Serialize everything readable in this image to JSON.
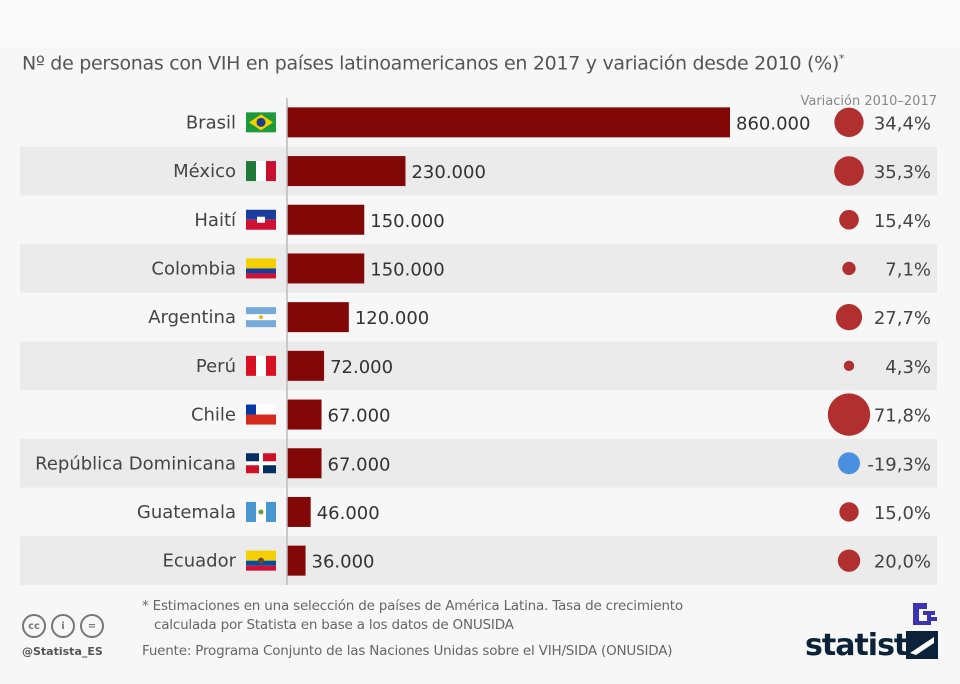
{
  "chart_data": {
    "type": "bar",
    "title": "Nº de personas con VIH en países latinoamericanos en 2017 y variación desde 2010 (%)",
    "title_mark": "*",
    "variation_header": "Variación 2010–2017",
    "categories": [
      "Brasil",
      "México",
      "Haití",
      "Colombia",
      "Argentina",
      "Perú",
      "Chile",
      "República Dominicana",
      "Guatemala",
      "Ecuador"
    ],
    "flags": [
      "br",
      "mx",
      "ht",
      "co",
      "ar",
      "pe",
      "cl",
      "do",
      "gt",
      "ec"
    ],
    "values": [
      860000,
      230000,
      150000,
      150000,
      120000,
      72000,
      67000,
      67000,
      46000,
      36000
    ],
    "value_labels": [
      "860.000",
      "230.000",
      "150.000",
      "150.000",
      "120.000",
      "72.000",
      "67.000",
      "67.000",
      "46.000",
      "36.000"
    ],
    "variation": [
      34.4,
      35.3,
      15.4,
      7.1,
      27.7,
      4.3,
      71.8,
      -19.3,
      15.0,
      20.0
    ],
    "variation_labels": [
      "34,4%",
      "35,3%",
      "15,4%",
      "7,1%",
      "27,7%",
      "4,3%",
      "71,8%",
      "-19,3%",
      "15,0%",
      "20,0%"
    ],
    "xlim": [
      0,
      860000
    ],
    "colors": {
      "bar": "#820808",
      "positive": "#b22f2f",
      "negative": "#4a8fe0",
      "row_alt": "#ebebeb"
    }
  },
  "footer": {
    "note_line1": "* Estimaciones en una selección de países de América Latina. Tasa de crecimiento",
    "note_line2": "calculada por Statista en base a los datos de ONUSIDA",
    "source": "Fuente: Programa Conjunto de las Naciones Unidas sobre el VIH/SIDA (ONUSIDA)",
    "handle": "@Statista_ES",
    "logo": "statista"
  }
}
